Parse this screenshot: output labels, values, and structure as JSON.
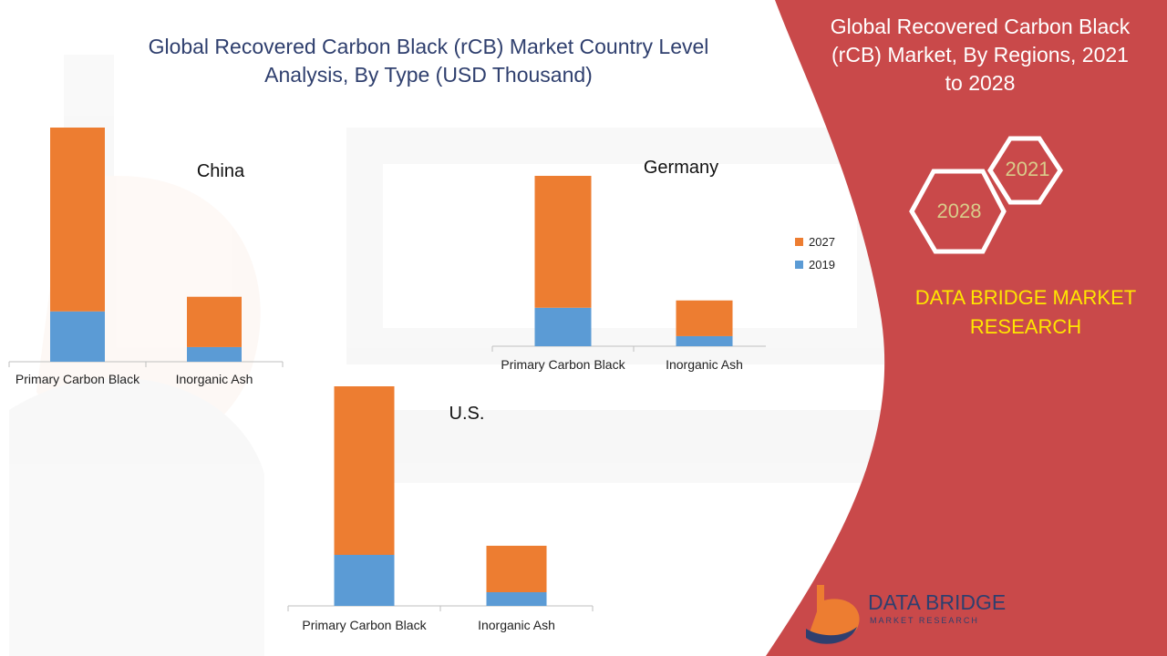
{
  "title": "Global Recovered Carbon Black (rCB) Market Country Level Analysis, By Type (USD Thousand)",
  "panel": {
    "title": "Global Recovered Carbon Black (rCB) Market, By Regions, 2021 to 2028",
    "hex_back": "2021",
    "hex_front": "2028",
    "brand": "DATA BRIDGE MARKET RESEARCH",
    "logo_name": "DATA BRIDGE",
    "logo_sub": "MARKET RESEARCH"
  },
  "colors": {
    "series_2019": "#5b9bd5",
    "series_2027": "#ed7d31",
    "panel": "#c9494a",
    "brand_text": "#ffe600"
  },
  "legend": [
    "2027",
    "2019"
  ],
  "chart_data": [
    {
      "type": "bar",
      "stacked": true,
      "title": "China",
      "categories": [
        "Primary Carbon Black",
        "Inorganic Ash"
      ],
      "series": [
        {
          "name": "2019",
          "values": [
            55,
            16
          ]
        },
        {
          "name": "2027",
          "values": [
            201,
            55
          ]
        }
      ],
      "ylim": [
        0,
        256
      ]
    },
    {
      "type": "bar",
      "stacked": true,
      "title": "Germany",
      "categories": [
        "Primary Carbon Black",
        "Inorganic Ash"
      ],
      "series": [
        {
          "name": "2019",
          "values": [
            42,
            11
          ]
        },
        {
          "name": "2027",
          "values": [
            144,
            39
          ]
        }
      ],
      "ylim": [
        0,
        186
      ]
    },
    {
      "type": "bar",
      "stacked": true,
      "title": "U.S.",
      "categories": [
        "Primary Carbon Black",
        "Inorganic Ash"
      ],
      "series": [
        {
          "name": "2019",
          "values": [
            56,
            15
          ]
        },
        {
          "name": "2027",
          "values": [
            185,
            51
          ]
        }
      ],
      "ylim": [
        0,
        241
      ]
    }
  ]
}
